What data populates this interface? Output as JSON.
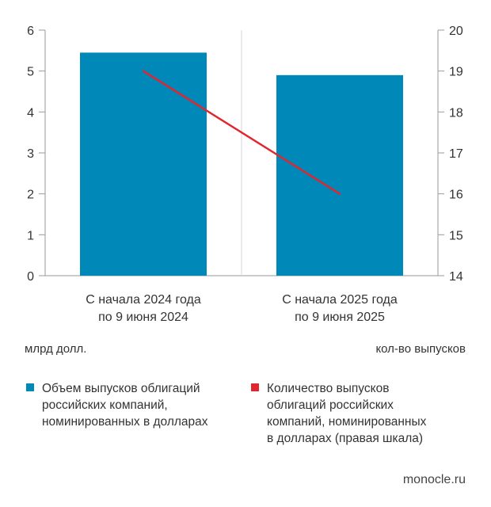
{
  "chart_data": {
    "type": "bar",
    "categories": [
      [
        "С начала 2024 года",
        "по 9 июня 2024"
      ],
      [
        "С начала 2025 года",
        "по 9 июня 2025"
      ]
    ],
    "series": [
      {
        "name": "Объем выпусков облигаций российских компаний, номинированных в долларах",
        "legend_lines": [
          "Объем выпусков облигаций",
          "российских компаний,",
          "номинированных в долларах"
        ],
        "kind": "bar",
        "axis": "left",
        "values": [
          5.45,
          4.9
        ],
        "color": "#0088b9"
      },
      {
        "name": "Количество выпусков облигаций российских компаний, номинированных в долларах (правая шкала)",
        "legend_lines": [
          "Количество выпусков",
          "облигаций российских",
          "компаний, номинированных",
          "в долларах (правая шкала)"
        ],
        "kind": "line",
        "axis": "right",
        "values": [
          19,
          16
        ],
        "color": "#e0262e"
      }
    ],
    "ylim_left": [
      0,
      6
    ],
    "yticks_left": [
      "0",
      "1",
      "2",
      "3",
      "4",
      "5",
      "6"
    ],
    "ylim_right": [
      14,
      20
    ],
    "yticks_right": [
      "14",
      "15",
      "16",
      "17",
      "18",
      "19",
      "20"
    ],
    "ylabel_left": "млрд долл.",
    "ylabel_right": "кол-во выпусков",
    "grid": "vertical divider only",
    "legend_placement": "bottom",
    "source": "monocle.ru"
  }
}
